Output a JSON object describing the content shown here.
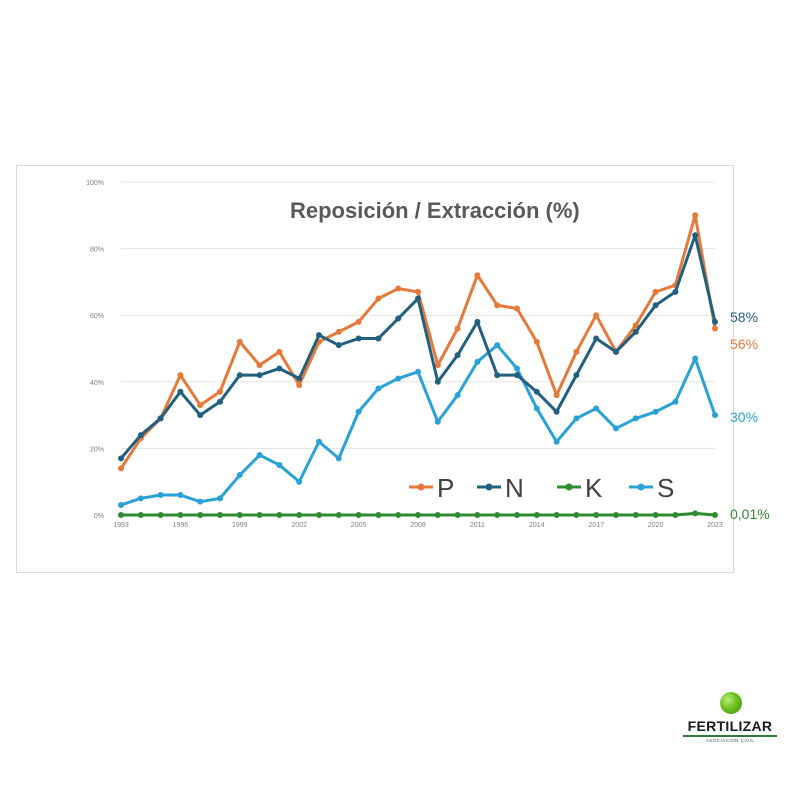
{
  "chart_data": {
    "type": "line",
    "title": "Reposición / Extracción (%)",
    "ylim": [
      0,
      100
    ],
    "yticks": [
      "0%",
      "20%",
      "40%",
      "60%",
      "80%",
      "100%"
    ],
    "ytick_values": [
      0,
      20,
      40,
      60,
      80,
      100
    ],
    "x": [
      1993,
      1994,
      1995,
      1996,
      1997,
      1998,
      1999,
      2000,
      2001,
      2002,
      2003,
      2004,
      2005,
      2006,
      2007,
      2008,
      2009,
      2010,
      2011,
      2012,
      2013,
      2014,
      2015,
      2016,
      2017,
      2018,
      2019,
      2020,
      2021,
      2022,
      2023
    ],
    "xticks": [
      "1993",
      "1996",
      "1999",
      "2002",
      "2005",
      "2008",
      "2011",
      "2014",
      "2017",
      "2020",
      "2023"
    ],
    "grid": true,
    "legend_position": "inside lower-right",
    "series": [
      {
        "name": "P",
        "color": "#e5793a",
        "end_label": "56%",
        "values": [
          14,
          23,
          29,
          42,
          33,
          37,
          52,
          45,
          49,
          39,
          52,
          55,
          58,
          65,
          68,
          67,
          45,
          56,
          72,
          63,
          62,
          52,
          36,
          49,
          60,
          49,
          57,
          67,
          69,
          90,
          56
        ]
      },
      {
        "name": "N",
        "color": "#22607f",
        "end_label": "58%",
        "values": [
          17,
          24,
          29,
          37,
          30,
          34,
          42,
          42,
          44,
          41,
          54,
          51,
          53,
          53,
          59,
          65,
          40,
          48,
          58,
          42,
          42,
          37,
          31,
          42,
          53,
          49,
          55,
          63,
          67,
          84,
          58
        ]
      },
      {
        "name": "K",
        "color": "#2e8b2e",
        "end_label": "0,01%",
        "values": [
          0,
          0,
          0,
          0,
          0,
          0,
          0,
          0,
          0,
          0,
          0,
          0,
          0,
          0,
          0,
          0,
          0,
          0,
          0,
          0,
          0,
          0,
          0,
          0,
          0,
          0,
          0,
          0,
          0,
          0.5,
          0.01
        ]
      },
      {
        "name": "S",
        "color": "#2aa2d6",
        "end_label": "30%",
        "values": [
          3,
          5,
          6,
          6,
          4,
          5,
          12,
          18,
          15,
          10,
          22,
          17,
          31,
          38,
          41,
          43,
          28,
          36,
          46,
          51,
          44,
          32,
          22,
          29,
          32,
          26,
          29,
          31,
          34,
          47,
          30
        ]
      }
    ]
  },
  "logo": {
    "name": "FERTILIZAR",
    "subtitle": "ASOCIACION CIVIL"
  }
}
